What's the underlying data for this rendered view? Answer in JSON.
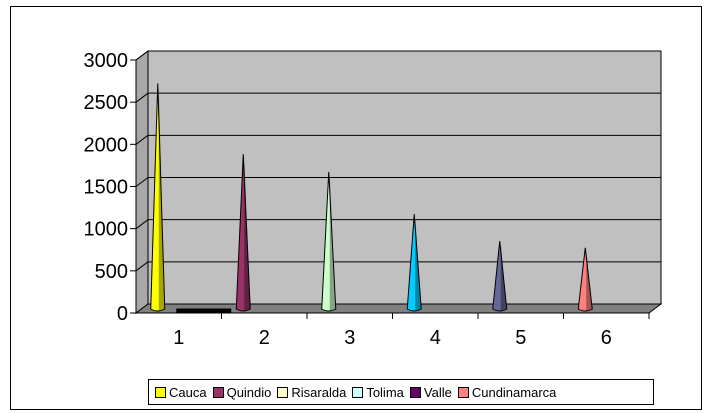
{
  "chart_data": {
    "type": "bar",
    "style": "3d-cone",
    "categories": [
      "1",
      "2",
      "3",
      "4",
      "5",
      "6"
    ],
    "series": [
      {
        "name": "Cauca",
        "color": "#ffff00",
        "values": [
          2670,
          0,
          0,
          0,
          0,
          0
        ]
      },
      {
        "name": "Quindio",
        "color": "#993366",
        "values": [
          0,
          1830,
          0,
          0,
          0,
          0
        ]
      },
      {
        "name": "Risaralda",
        "color": "#ffffcc",
        "values": [
          0,
          0,
          1620,
          0,
          0,
          0
        ]
      },
      {
        "name": "Tolima",
        "color": "#ccffff",
        "values": [
          0,
          0,
          0,
          1120,
          0,
          0
        ]
      },
      {
        "name": "Valle",
        "color": "#660066",
        "values": [
          0,
          0,
          0,
          0,
          800,
          0
        ]
      },
      {
        "name": "Cundinamarca",
        "color": "#ff8080",
        "values": [
          0,
          0,
          0,
          0,
          0,
          720
        ]
      }
    ],
    "cone_colors": [
      "#ffff00",
      "#993366",
      "#ccffcc",
      "#00ccff",
      "#666699",
      "#ff8080"
    ],
    "ylim": [
      0,
      3000
    ],
    "yticks": [
      "0",
      "500",
      "1000",
      "1500",
      "2000",
      "2500",
      "3000"
    ],
    "grid": true,
    "wall_color": "#c0c0c0",
    "legend_position": "bottom"
  }
}
